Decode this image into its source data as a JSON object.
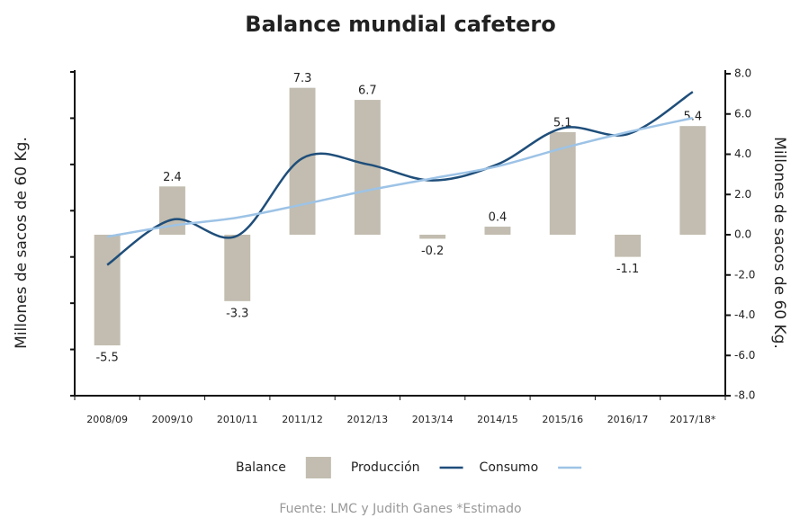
{
  "chart_data": {
    "type": "combo",
    "title": "Balance mundial cafetero",
    "y_label": "Millones de sacos de 60 Kg.",
    "y2_label": "Millones de sacos de 60 Kg.",
    "source": "Fuente: LMC y Judith Ganes *Estimado",
    "categories": [
      "2008/09",
      "2009/10",
      "2010/11",
      "2011/12",
      "2012/13",
      "2013/14",
      "2014/15",
      "2015/16",
      "2016/17",
      "2017/18*"
    ],
    "series": [
      {
        "name": "Balance",
        "type": "bar",
        "color": "#c2bdb0",
        "values": [
          -5.5,
          2.4,
          -3.3,
          7.3,
          6.7,
          -0.2,
          0.4,
          5.1,
          -1.1,
          5.4
        ]
      },
      {
        "name": "Producción",
        "type": "line",
        "color": "#1f4e7a",
        "values": [
          -1.5,
          0.75,
          -0.05,
          3.8,
          3.5,
          2.7,
          3.5,
          5.3,
          5.0,
          7.1
        ]
      },
      {
        "name": "Consumo",
        "type": "line",
        "color": "#9dc3e6",
        "values": [
          -0.1,
          0.45,
          0.85,
          1.5,
          2.2,
          2.8,
          3.4,
          4.3,
          5.1,
          5.8
        ]
      }
    ],
    "ylim": [
      -8,
      8
    ],
    "yticks": [
      {
        "value": -8,
        "label": "-8.0"
      },
      {
        "value": -6,
        "label": "-6.0"
      },
      {
        "value": -4,
        "label": "-4.0"
      },
      {
        "value": -2,
        "label": "-2.0"
      },
      {
        "value": 0,
        "label": "0.0"
      },
      {
        "value": 2,
        "label": "2.0"
      },
      {
        "value": 4,
        "label": "4.0"
      },
      {
        "value": 6,
        "label": "6.0"
      },
      {
        "value": 8,
        "label": "8.0"
      }
    ]
  }
}
